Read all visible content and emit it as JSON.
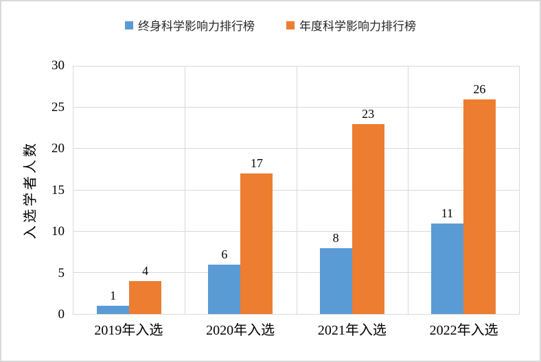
{
  "chart_data": {
    "type": "bar",
    "title": "",
    "categories": [
      "2019年入选",
      "2020年入选",
      "2021年入选",
      "2022年入选"
    ],
    "series": [
      {
        "name": "终身科学影响力排行榜",
        "color": "#5B9BD5",
        "values": [
          1,
          6,
          8,
          11
        ]
      },
      {
        "name": "年度科学影响力排行榜",
        "color": "#ED7D31",
        "values": [
          4,
          17,
          23,
          26
        ]
      }
    ],
    "xlabel": "",
    "ylabel": "入选学者人数",
    "ylim": [
      0,
      30
    ],
    "ytick_step": 5,
    "ytick_labels": [
      "0",
      "5",
      "10",
      "15",
      "20",
      "25",
      "30"
    ],
    "grid": true,
    "legend_position": "top",
    "data_labels_shown": true,
    "colors": {
      "gridline": "#D9D9D9",
      "plot_border": "#D9D9D9",
      "frame_border": "#D9D9D9",
      "text": "#000000",
      "legend_text": "#262626",
      "background": "#FFFFFF"
    }
  }
}
